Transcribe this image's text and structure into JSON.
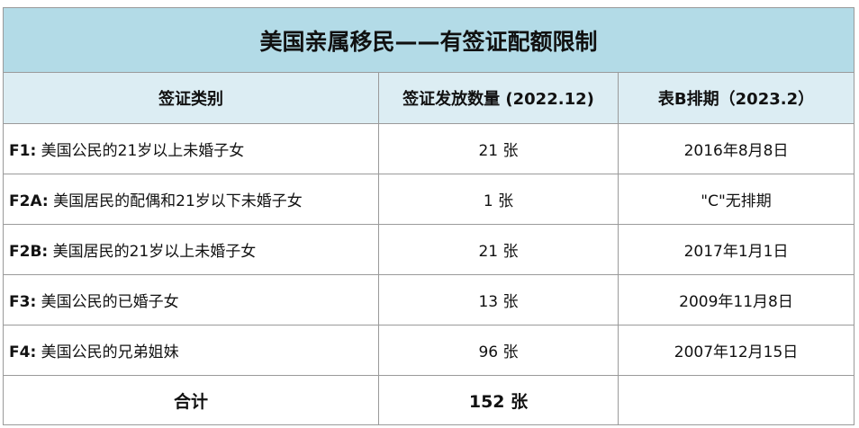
{
  "title": "美国亲属移民——有签证配额限制",
  "header": [
    "签证类别",
    "签证发放数量 (2022.12)",
    "表B排期（2023.2）"
  ],
  "rows": [
    {
      "code": "F1:",
      "desc": "美国公民的21岁以上未婚子女",
      "count": "21 张",
      "date": "2016年8月8日"
    },
    {
      "code": "F2A:",
      "desc": "美国居民的配偶和21岁以下未婚子女",
      "count": "1 张",
      "date": "\"C\"无排期"
    },
    {
      "code": "F2B:",
      "desc": "美国居民的21岁以上未婚子女",
      "count": "21 张",
      "date": "2017年1月1日"
    },
    {
      "code": "F3:",
      "desc": "美国公民的已婚子女",
      "count": "13 张",
      "date": "2009年11月8日"
    },
    {
      "code": "F4:",
      "desc": "美国公民的兄弟姐妹",
      "count": "96 张",
      "date": "2007年12月15日"
    }
  ],
  "total": {
    "label": "合计",
    "count": "152 张"
  }
}
